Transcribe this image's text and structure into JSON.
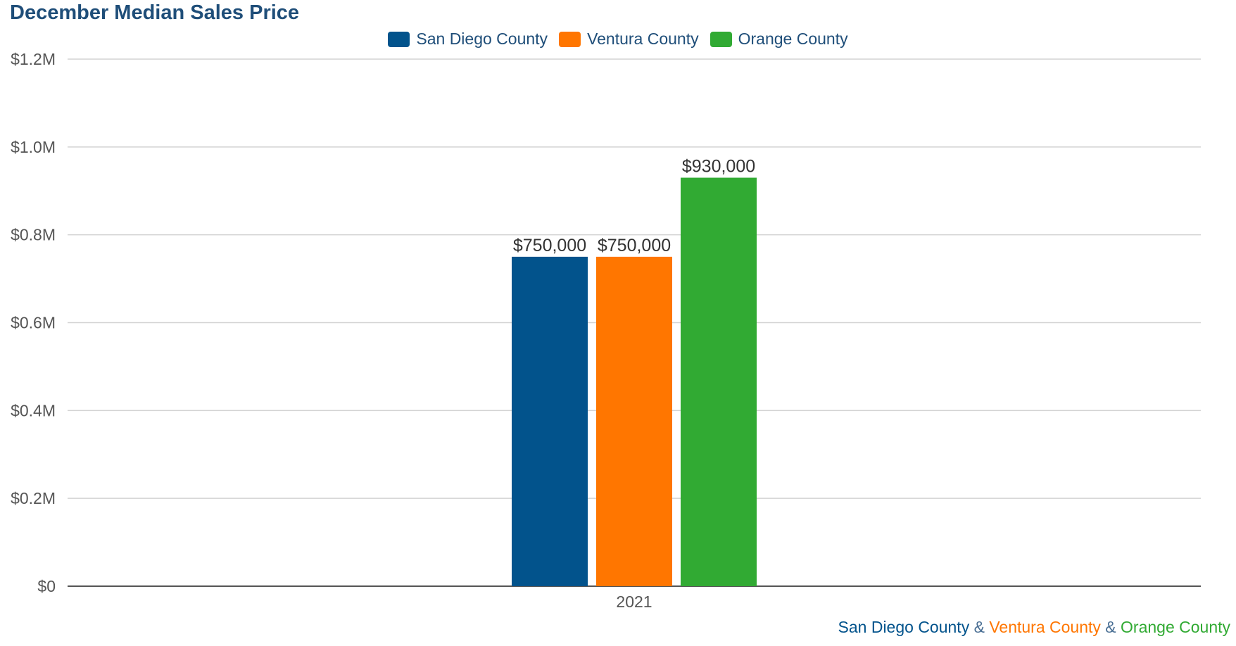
{
  "chart_data": {
    "type": "bar",
    "title": "December Median Sales Price",
    "categories": [
      "2021"
    ],
    "series": [
      {
        "name": "San Diego County",
        "color": "#02538c",
        "values": [
          750000
        ],
        "label": "$750,000"
      },
      {
        "name": "Ventura County",
        "color": "#ff7600",
        "values": [
          750000
        ],
        "label": "$750,000"
      },
      {
        "name": "Orange County",
        "color": "#31aa33",
        "values": [
          930000
        ],
        "label": "$930,000"
      }
    ],
    "ylim": [
      0,
      1200000
    ],
    "yticks": [
      {
        "value": 0,
        "label": "$0"
      },
      {
        "value": 200000,
        "label": "$0.2M"
      },
      {
        "value": 400000,
        "label": "$0.4M"
      },
      {
        "value": 600000,
        "label": "$0.6M"
      },
      {
        "value": 800000,
        "label": "$0.8M"
      },
      {
        "value": 1000000,
        "label": "$1.0M"
      },
      {
        "value": 1200000,
        "label": "$1.2M"
      }
    ],
    "xlabel": "",
    "ylabel": "",
    "grid": true,
    "legend_position": "top-center"
  },
  "footer": {
    "part1": "San Diego County",
    "sep1": " & ",
    "part2": "Ventura County",
    "sep2": " & ",
    "part3": "Orange County"
  }
}
